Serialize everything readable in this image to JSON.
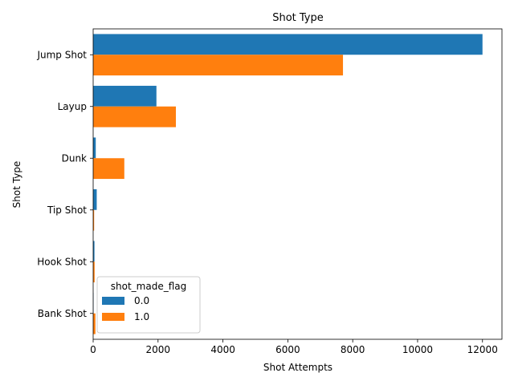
{
  "chart_data": {
    "type": "bar",
    "orientation": "horizontal",
    "title": "Shot Type",
    "xlabel": "Shot Attempts",
    "ylabel": "Shot Type",
    "categories": [
      "Jump Shot",
      "Layup",
      "Dunk",
      "Tip Shot",
      "Hook Shot",
      "Bank Shot"
    ],
    "series": [
      {
        "name": "0.0",
        "color": "#1f77b4",
        "values": [
          12000,
          1950,
          80,
          110,
          40,
          10
        ]
      },
      {
        "name": "1.0",
        "color": "#ff7f0e",
        "values": [
          7700,
          2550,
          960,
          30,
          45,
          70
        ]
      }
    ],
    "xlim": [
      0,
      12600
    ],
    "xticks": [
      0,
      2000,
      4000,
      6000,
      8000,
      10000,
      12000
    ],
    "grid": false,
    "legend": {
      "title": "shot_made_flag",
      "placement": "lower-center"
    }
  }
}
